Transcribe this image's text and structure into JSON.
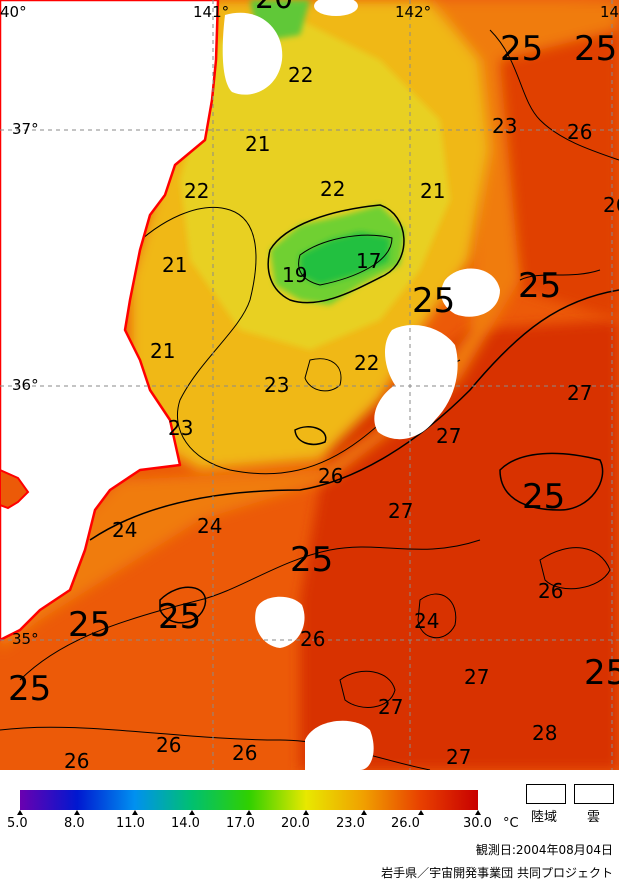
{
  "map": {
    "lon_labels": [
      "40°",
      "141°",
      "142°",
      "14"
    ],
    "lat_labels": [
      "37°",
      "36°",
      "35°"
    ],
    "contour_labels": [
      {
        "text": "22",
        "cls": "s"
      },
      {
        "text": "21",
        "cls": "s"
      },
      {
        "text": "22",
        "cls": "s"
      },
      {
        "text": "22",
        "cls": "s"
      },
      {
        "text": "21",
        "cls": "s"
      },
      {
        "text": "21",
        "cls": "s"
      },
      {
        "text": "19",
        "cls": "s"
      },
      {
        "text": "17",
        "cls": "s"
      },
      {
        "text": "21",
        "cls": "s"
      },
      {
        "text": "23",
        "cls": "s"
      },
      {
        "text": "22",
        "cls": "s"
      },
      {
        "text": "23",
        "cls": "s"
      },
      {
        "text": "26",
        "cls": "s"
      },
      {
        "text": "24",
        "cls": "s"
      },
      {
        "text": "24",
        "cls": "s"
      },
      {
        "text": "27",
        "cls": "s"
      },
      {
        "text": "26",
        "cls": "s"
      },
      {
        "text": "24",
        "cls": "s"
      },
      {
        "text": "26",
        "cls": "s"
      },
      {
        "text": "27",
        "cls": "s"
      },
      {
        "text": "27",
        "cls": "s"
      },
      {
        "text": "27",
        "cls": "s"
      },
      {
        "text": "28",
        "cls": "s"
      },
      {
        "text": "26",
        "cls": "s"
      },
      {
        "text": "26",
        "cls": "s"
      },
      {
        "text": "26",
        "cls": "s"
      },
      {
        "text": "23",
        "cls": "s"
      },
      {
        "text": "26",
        "cls": "s"
      },
      {
        "text": "27",
        "cls": "s"
      },
      {
        "text": "27",
        "cls": "s"
      },
      {
        "text": "26",
        "cls": "s"
      },
      {
        "text": "25",
        "cls": "b"
      },
      {
        "text": "25",
        "cls": "b"
      },
      {
        "text": "25",
        "cls": "b"
      },
      {
        "text": "25",
        "cls": "b"
      },
      {
        "text": "25",
        "cls": "b"
      },
      {
        "text": "25",
        "cls": "b"
      },
      {
        "text": "25",
        "cls": "b"
      },
      {
        "text": "25",
        "cls": "b"
      },
      {
        "text": "25",
        "cls": "b"
      },
      {
        "text": "25",
        "cls": "b"
      },
      {
        "text": "20",
        "cls": "b"
      }
    ]
  },
  "colorbar": {
    "ticks": [
      "5.0",
      "8.0",
      "11.0",
      "14.0",
      "17.0",
      "20.0",
      "23.0",
      "26.0",
      "30.0"
    ],
    "unit": "°C",
    "min": 5.0,
    "max": 30.0,
    "colors": [
      "#6a00b0",
      "#0018d0",
      "#0090f0",
      "#00c070",
      "#30d000",
      "#e8e800",
      "#f0a000",
      "#e84000",
      "#c80000"
    ]
  },
  "key": {
    "land_label": "陸域",
    "cloud_label": "雲"
  },
  "footer": {
    "date": "観測日:2004年08月04日",
    "credit": "岩手県／宇宙開発事業団 共同プロジェクト"
  },
  "colors": {
    "coastline": "#ff0000",
    "land": "#ffffff",
    "cloud": "#ffffff"
  }
}
